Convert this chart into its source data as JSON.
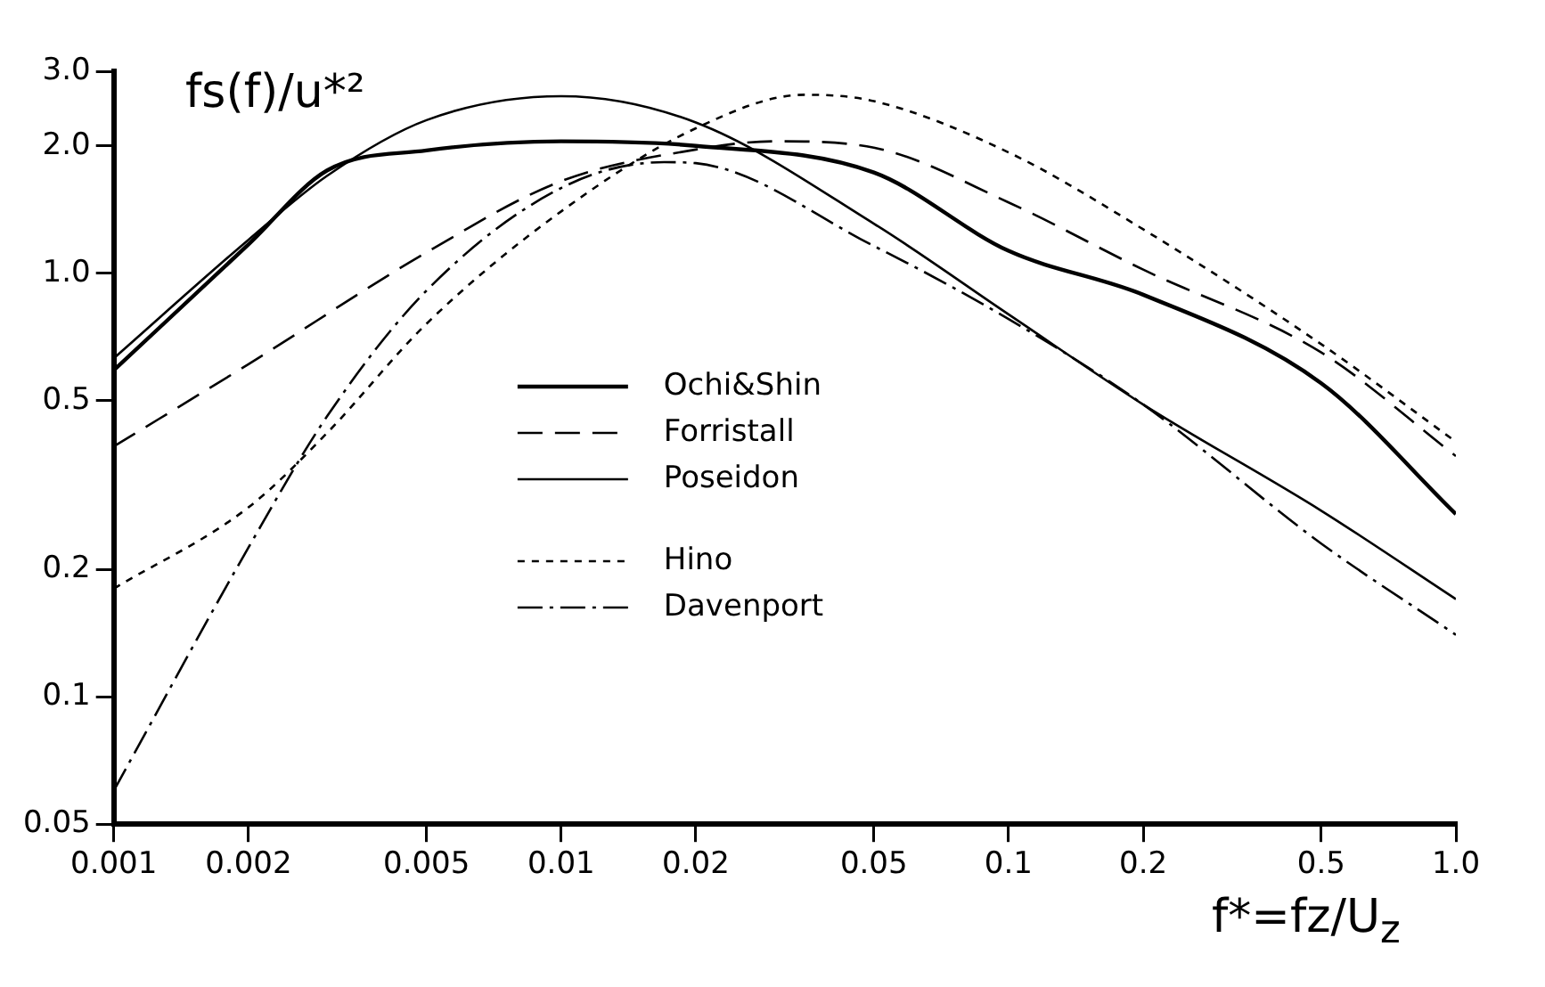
{
  "chart_data": {
    "type": "line",
    "xlabel": "f*=fz/U$_{z}$",
    "ylabel": "fs(f)/u*²",
    "log": "xy",
    "xlim": [
      0.001,
      1.0
    ],
    "xticks": [
      0.001,
      0.002,
      0.005,
      0.01,
      0.02,
      0.05,
      0.1,
      0.2,
      0.5,
      {
        "value": 1.0,
        "label": "1.0"
      }
    ],
    "ylim": [
      0.05,
      3.0
    ],
    "yticks": [
      0.05,
      0.1,
      0.2,
      0.5,
      {
        "value": 1.0,
        "label": "1.0"
      },
      {
        "value": 2.0,
        "label": "2.0"
      },
      {
        "value": 3.0,
        "label": "3.0"
      }
    ],
    "grid": false,
    "legend": "center",
    "marker": "none",
    "series": [
      {
        "name": "Ochi&Shin",
        "color": "#000000",
        "line_style": "solid",
        "x": [
          0.001,
          0.002,
          0.003,
          0.005,
          0.01,
          0.02,
          0.05,
          0.1,
          0.2,
          0.5,
          1.0
        ],
        "values": [
          0.59,
          1.17,
          1.75,
          1.95,
          2.05,
          2.0,
          1.73,
          1.13,
          0.89,
          0.55,
          0.27
        ]
      },
      {
        "name": "Forristall",
        "color": "#000000",
        "line_style": "dashed",
        "x": [
          0.001,
          0.002,
          0.005,
          0.01,
          0.02,
          0.03,
          0.05,
          0.1,
          0.2,
          0.5,
          1.0
        ],
        "values": [
          0.39,
          0.61,
          1.12,
          1.65,
          1.96,
          2.05,
          1.98,
          1.47,
          1.02,
          0.65,
          0.37
        ]
      },
      {
        "name": "Poseidon",
        "color": "#000000",
        "line_style": "solid",
        "x": [
          0.001,
          0.002,
          0.003,
          0.005,
          0.01,
          0.02,
          0.05,
          0.1,
          0.2,
          0.5,
          1.0
        ],
        "values": [
          0.63,
          1.2,
          1.7,
          2.3,
          2.62,
          2.27,
          1.31,
          0.8,
          0.49,
          0.275,
          0.17
        ]
      },
      {
        "name": "Hino",
        "color": "#000000",
        "line_style": "dotted",
        "x": [
          0.001,
          0.002,
          0.003,
          0.005,
          0.01,
          0.02,
          0.035,
          0.05,
          0.1,
          0.2,
          0.5,
          1.0
        ],
        "values": [
          0.18,
          0.28,
          0.42,
          0.76,
          1.4,
          2.2,
          2.64,
          2.55,
          1.93,
          1.27,
          0.68,
          0.4
        ]
      },
      {
        "name": "Davenport",
        "color": "#000000",
        "line_style": "dashdot",
        "x": [
          0.001,
          0.002,
          0.003,
          0.005,
          0.01,
          0.017,
          0.02,
          0.05,
          0.1,
          0.2,
          0.5,
          1.0
        ],
        "values": [
          0.06,
          0.225,
          0.46,
          0.91,
          1.59,
          1.83,
          1.82,
          1.16,
          0.78,
          0.49,
          0.23,
          0.14
        ]
      }
    ]
  }
}
